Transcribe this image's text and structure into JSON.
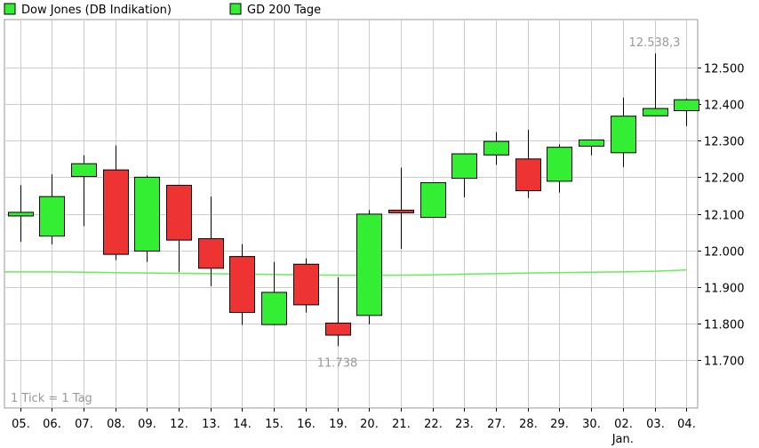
{
  "chart_data": {
    "type": "candlestick",
    "legend": [
      {
        "label": "Dow Jones (DB Indikation)",
        "color": "#33ee33"
      },
      {
        "label": "GD 200 Tage",
        "color": "#33ee33"
      }
    ],
    "categories": [
      "05.",
      "06.",
      "07.",
      "08.",
      "09.",
      "12.",
      "13.",
      "14.",
      "15.",
      "16.",
      "19.",
      "20.",
      "21.",
      "22.",
      "23.",
      "27.",
      "28.",
      "29.",
      "30.",
      "02.",
      "03.",
      "04."
    ],
    "month_label": {
      "text": "Jan.",
      "category_index": 19
    },
    "candles": [
      {
        "open": 12094,
        "high": 12178,
        "low": 12023,
        "close": 12104
      },
      {
        "open": 12039,
        "high": 12208,
        "low": 12016,
        "close": 12147
      },
      {
        "open": 12202,
        "high": 12260,
        "low": 12066,
        "close": 12237
      },
      {
        "open": 12220,
        "high": 12287,
        "low": 11973,
        "close": 11989
      },
      {
        "open": 11998,
        "high": 12205,
        "low": 11968,
        "close": 12200
      },
      {
        "open": 12178,
        "high": 12178,
        "low": 11940,
        "close": 12028
      },
      {
        "open": 12032,
        "high": 12147,
        "low": 11902,
        "close": 11951
      },
      {
        "open": 11983,
        "high": 12017,
        "low": 11796,
        "close": 11830
      },
      {
        "open": 11797,
        "high": 11968,
        "low": 11795,
        "close": 11885
      },
      {
        "open": 11962,
        "high": 11978,
        "low": 11830,
        "close": 11851
      },
      {
        "open": 11801,
        "high": 11926,
        "low": 11738,
        "close": 11768
      },
      {
        "open": 11822,
        "high": 12110,
        "low": 11798,
        "close": 12099
      },
      {
        "open": 12110,
        "high": 12226,
        "low": 12004,
        "close": 12104
      },
      {
        "open": 12090,
        "high": 12185,
        "low": 12090,
        "close": 12185
      },
      {
        "open": 12197,
        "high": 12264,
        "low": 12145,
        "close": 12264
      },
      {
        "open": 12261,
        "high": 12323,
        "low": 12234,
        "close": 12298
      },
      {
        "open": 12250,
        "high": 12330,
        "low": 12143,
        "close": 12163
      },
      {
        "open": 12189,
        "high": 12290,
        "low": 12158,
        "close": 12282
      },
      {
        "open": 12285,
        "high": 12303,
        "low": 12260,
        "close": 12302
      },
      {
        "open": 12267,
        "high": 12418,
        "low": 12228,
        "close": 12367
      },
      {
        "open": 12368,
        "high": 12538.3,
        "low": 12368,
        "close": 12388
      },
      {
        "open": 12382,
        "high": 12415,
        "low": 12340,
        "close": 12412
      }
    ],
    "moving_average": {
      "name": "GD 200 Tage",
      "values": [
        11941,
        11941,
        11940,
        11939,
        11938,
        11937,
        11936,
        11935,
        11934,
        11933,
        11932,
        11932,
        11932,
        11933,
        11935,
        11936,
        11938,
        11939,
        11940,
        11941,
        11943,
        11946
      ]
    },
    "annotations": [
      {
        "text": "12.538,3",
        "category_index": 20,
        "value": 12538.3,
        "position": "above"
      },
      {
        "text": "11.738",
        "category_index": 10,
        "value": 11738,
        "position": "below"
      }
    ],
    "footnote": "1 Tick = 1 Tag",
    "y_ticks": [
      "12.500",
      "12.400",
      "12.300",
      "12.200",
      "12.100",
      "12.000",
      "11.900",
      "11.800",
      "11.700"
    ],
    "ylim": [
      11600,
      12600
    ],
    "grid": true,
    "y_axis_position": "right",
    "colors": {
      "up": "#33ee33",
      "down": "#ee3333",
      "ma_line": "#66ee55",
      "grid": "#cccccc",
      "annotation": "#999999"
    }
  }
}
